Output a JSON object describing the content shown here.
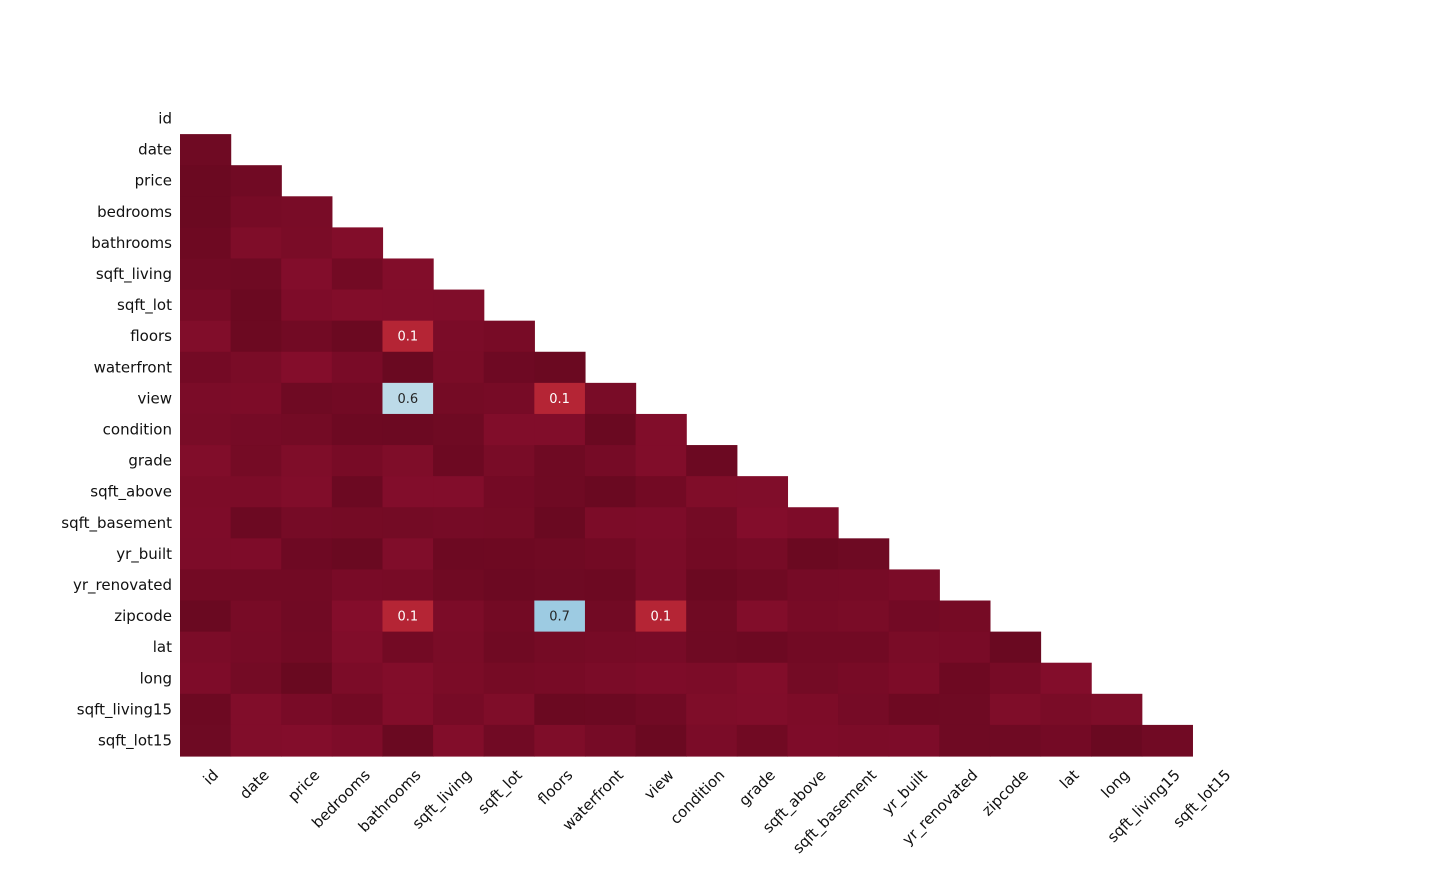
{
  "chart_data": {
    "type": "heatmap",
    "title": "",
    "xlabel": "",
    "ylabel": "",
    "layout": "lower-triangle",
    "grid": false,
    "colorbar": false,
    "color_scale": {
      "min": -1,
      "max": 1,
      "low_color": "#0a4a8e",
      "mid_color": "#f7f7f7",
      "high_color": "#67001f",
      "near_zero_color": "#7a0a24"
    },
    "labels": [
      "id",
      "date",
      "price",
      "bedrooms",
      "bathrooms",
      "sqft_living",
      "sqft_lot",
      "floors",
      "waterfront",
      "view",
      "condition",
      "grade",
      "sqft_above",
      "sqft_basement",
      "yr_built",
      "yr_renovated",
      "zipcode",
      "lat",
      "long",
      "sqft_living15",
      "sqft_lot15"
    ],
    "annotated_cells": [
      {
        "row": "floors",
        "col": "bathrooms",
        "value": 0.1,
        "label": "0.1",
        "color": "#b52535"
      },
      {
        "row": "view",
        "col": "bathrooms",
        "value": 0.6,
        "label": "0.6",
        "color": "#bcdae8"
      },
      {
        "row": "view",
        "col": "floors",
        "value": 0.1,
        "label": "0.1",
        "color": "#b52535"
      },
      {
        "row": "zipcode",
        "col": "bathrooms",
        "value": 0.1,
        "label": "0.1",
        "color": "#b52535"
      },
      {
        "row": "zipcode",
        "col": "floors",
        "value": 0.7,
        "label": "0.7",
        "color": "#9dcbe2"
      },
      {
        "row": "zipcode",
        "col": "view",
        "value": 0.1,
        "label": "0.1",
        "color": "#b52535"
      }
    ]
  }
}
